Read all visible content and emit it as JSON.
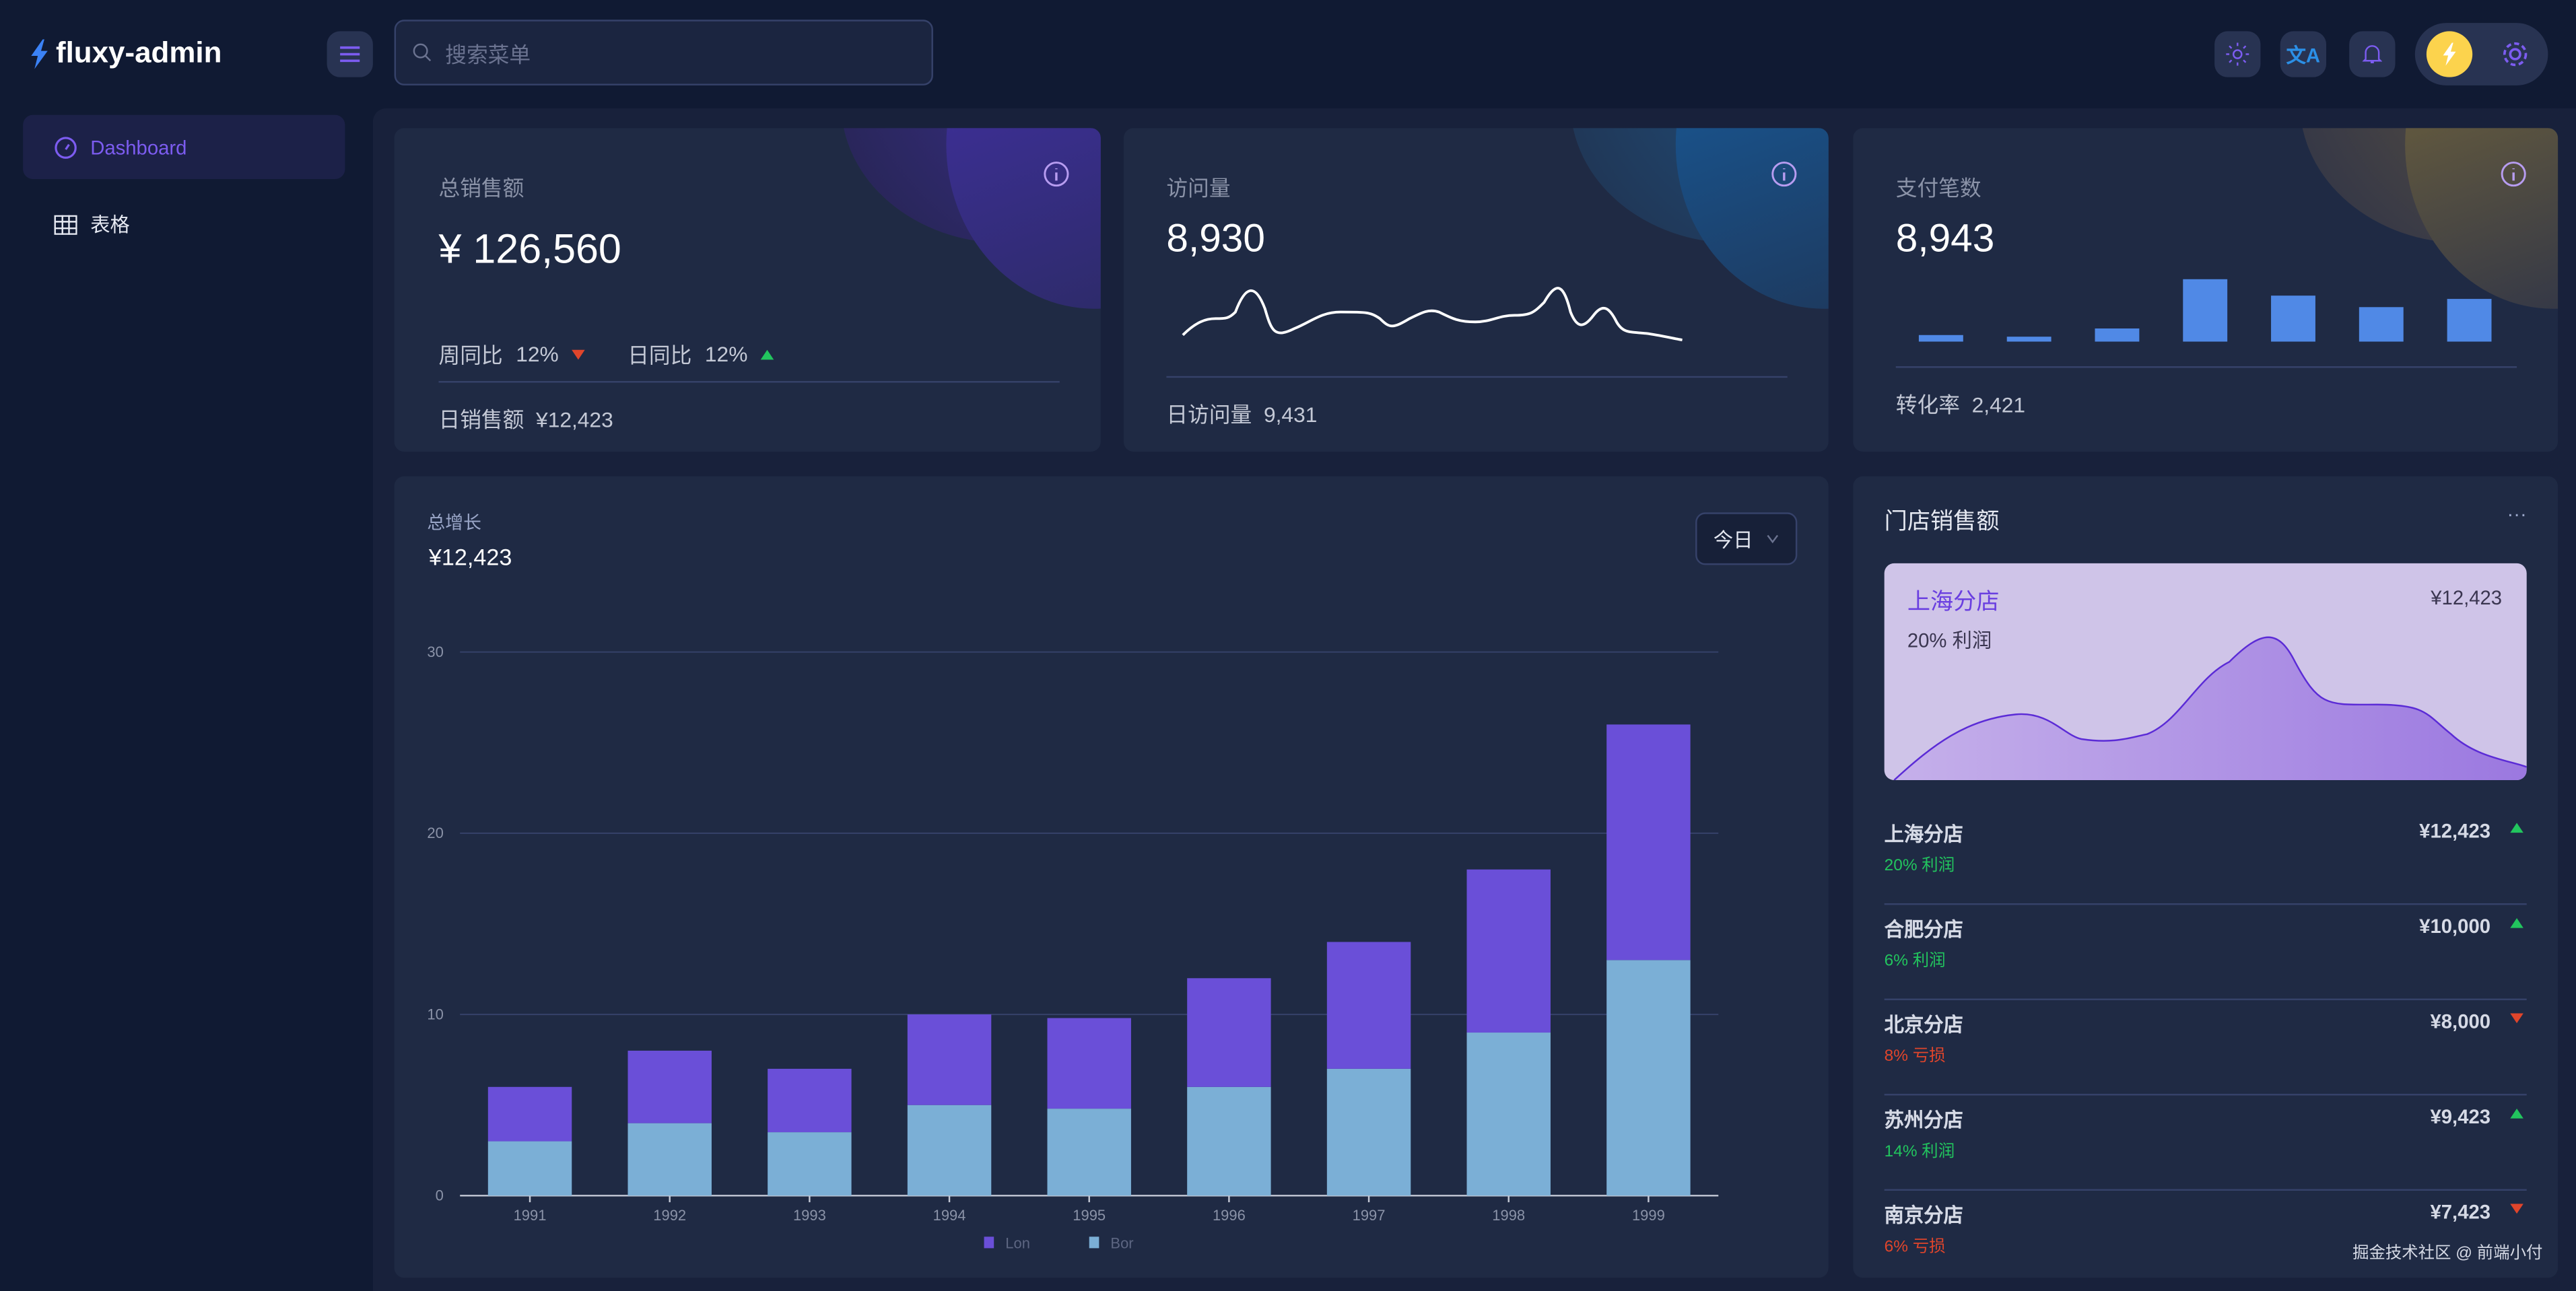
{
  "app": {
    "title": "fluxy-admin"
  },
  "search": {
    "placeholder": "搜索菜单"
  },
  "header_icons": [
    "sun-icon",
    "translate-icon",
    "bell-icon",
    "lightning-icon",
    "gear-icon"
  ],
  "sidebar": {
    "items": [
      {
        "label": "Dashboard",
        "icon": "dashboard-icon",
        "active": true
      },
      {
        "label": "表格",
        "icon": "table-icon",
        "active": false
      }
    ]
  },
  "cards": {
    "sales": {
      "title": "总销售额",
      "value": "¥ 126,560",
      "week_label": "周同比",
      "week_value": "12%",
      "day_label": "日同比",
      "day_value": "12%",
      "footer_label": "日销售额",
      "footer_value": "¥12,423"
    },
    "visits": {
      "title": "访问量",
      "value": "8,930",
      "footer_label": "日访问量",
      "footer_value": "9,431"
    },
    "payments": {
      "title": "支付笔数",
      "value": "8,943",
      "footer_label": "转化率",
      "footer_value": "2,421",
      "bars": [
        4,
        3,
        8,
        38,
        28,
        21,
        26
      ]
    }
  },
  "growth": {
    "title": "总增长",
    "value": "¥12,423",
    "period": "今日"
  },
  "stores": {
    "title": "门店销售额",
    "more": "···",
    "highlight": {
      "name": "上海分店",
      "value": "¥12,423",
      "profit": "20% 利润"
    },
    "items": [
      {
        "name": "上海分店",
        "value": "¥12,423",
        "profit": "20% 利润",
        "trend": "up"
      },
      {
        "name": "合肥分店",
        "value": "¥10,000",
        "profit": "6% 利润",
        "trend": "up"
      },
      {
        "name": "北京分店",
        "value": "¥8,000",
        "profit": "8% 亏损",
        "trend": "down"
      },
      {
        "name": "苏州分店",
        "value": "¥9,423",
        "profit": "14% 利润",
        "trend": "up"
      },
      {
        "name": "南京分店",
        "value": "¥7,423",
        "profit": "6% 亏损",
        "trend": "down"
      }
    ]
  },
  "watermark": "掘金技术社区 @ 前端小付",
  "colors": {
    "accent": "#7c5cf0",
    "up": "#22c55e",
    "down": "#e0452b",
    "lon": "#6a4fd8",
    "bor": "#7bafd6",
    "mini_bar": "#5089e6"
  },
  "chart_data": {
    "type": "bar",
    "stacked": true,
    "categories": [
      "1991",
      "1992",
      "1993",
      "1994",
      "1995",
      "1996",
      "1997",
      "1998",
      "1999"
    ],
    "series": [
      {
        "name": "Bor",
        "values": [
          3,
          4,
          3.5,
          5,
          4.8,
          6,
          7,
          9,
          13
        ]
      },
      {
        "name": "Lon",
        "values": [
          3,
          4,
          3.5,
          5,
          5,
          6,
          7,
          9,
          13
        ]
      }
    ],
    "yticks": [
      0,
      10,
      20,
      30
    ],
    "ylim": [
      0,
      30
    ],
    "grid": true,
    "legend": "bottom"
  }
}
